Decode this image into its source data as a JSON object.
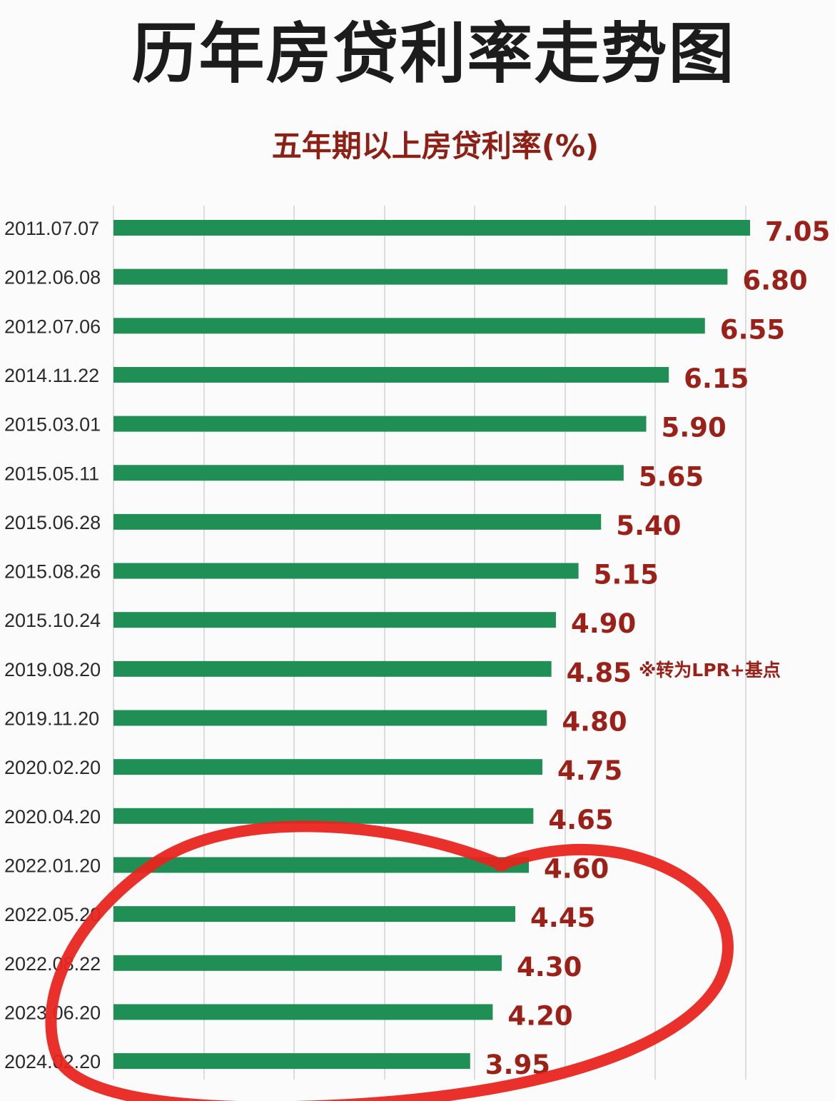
{
  "title": "历年房贷利率走势图",
  "subtitle": "五年期以上房贷利率(%)",
  "chart_data": {
    "type": "bar",
    "orientation": "horizontal",
    "categories": [
      "2011.07.07",
      "2012.06.08",
      "2012.07.06",
      "2014.11.22",
      "2015.03.01",
      "2015.05.11",
      "2015.06.28",
      "2015.08.26",
      "2015.10.24",
      "2019.08.20",
      "2019.11.20",
      "2020.02.20",
      "2020.04.20",
      "2022.01.20",
      "2022.05.20",
      "2022.08.22",
      "2023.06.20",
      "2024.02.20"
    ],
    "values": [
      7.05,
      6.8,
      6.55,
      6.15,
      5.9,
      5.65,
      5.4,
      5.15,
      4.9,
      4.85,
      4.8,
      4.75,
      4.65,
      4.6,
      4.45,
      4.3,
      4.2,
      3.95
    ],
    "value_labels": [
      "7.05",
      "6.80",
      "6.55",
      "6.15",
      "5.90",
      "5.65",
      "5.40",
      "5.15",
      "4.90",
      "4.85",
      "4.80",
      "4.75",
      "4.65",
      "4.60",
      "4.45",
      "4.30",
      "4.20",
      "3.95"
    ],
    "xlim": [
      0,
      7.05
    ],
    "grid": true,
    "bar_color": "#1f8f55",
    "label_color": "#9a2018",
    "annotations": [
      {
        "category": "2019.08.20",
        "text": "※转为LPR+基点"
      }
    ],
    "highlight": {
      "shape": "hand-drawn ellipse",
      "color": "#e8251f",
      "covers": [
        "2022.01.20",
        "2022.05.20",
        "2022.08.22",
        "2023.06.20",
        "2024.02.20"
      ]
    }
  }
}
